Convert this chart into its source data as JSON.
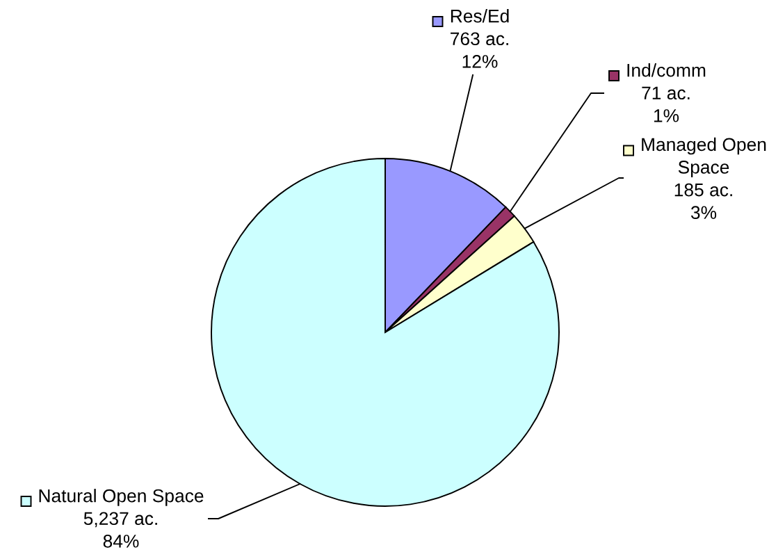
{
  "chart_data": {
    "type": "pie",
    "categories": [
      "Res/Ed",
      "Ind/comm",
      "Managed Open\nSpace",
      "Natural Open Space"
    ],
    "values": [
      763,
      71,
      185,
      5237
    ],
    "colors": [
      "#9999ff",
      "#993366",
      "#ffffcc",
      "#ccffff"
    ],
    "value_labels": [
      "763 ac.\n12%",
      "71 ac.\n1%",
      "185 ac.\n3%",
      "5,237 ac.\n84%"
    ],
    "legend": true
  }
}
